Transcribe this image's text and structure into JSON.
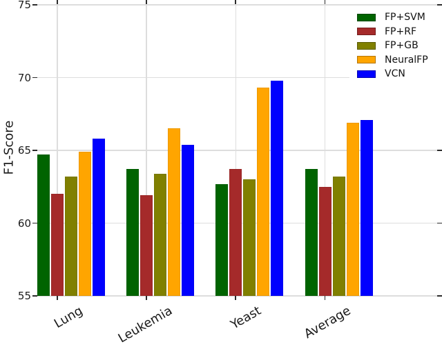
{
  "chart_data": {
    "type": "bar",
    "title": "",
    "xlabel": "",
    "ylabel": "F1-Score",
    "categories": [
      "Lung",
      "Leukemia",
      "Yeast",
      "Average"
    ],
    "series": [
      {
        "name": "FP+SVM",
        "color": "#006400",
        "values": [
          64.7,
          63.7,
          62.7,
          63.7
        ]
      },
      {
        "name": "FP+RF",
        "color": "#A52A2A",
        "values": [
          62.0,
          61.9,
          63.7,
          62.5
        ]
      },
      {
        "name": "FP+GB",
        "color": "#808000",
        "values": [
          63.2,
          63.4,
          63.0,
          63.2
        ]
      },
      {
        "name": "NeuralFP",
        "color": "#FFA500",
        "values": [
          64.9,
          66.5,
          69.3,
          66.9
        ]
      },
      {
        "name": "VCN",
        "color": "#0000FF",
        "values": [
          65.8,
          65.4,
          69.8,
          67.1
        ]
      }
    ],
    "ylim": [
      55,
      75
    ],
    "yticks": [
      55,
      60,
      65,
      70,
      75
    ],
    "grid": true,
    "grid_color": "#dddddd",
    "background": "#ffffff",
    "legend_position": "upper right",
    "xtick_rotation_deg": 30
  }
}
